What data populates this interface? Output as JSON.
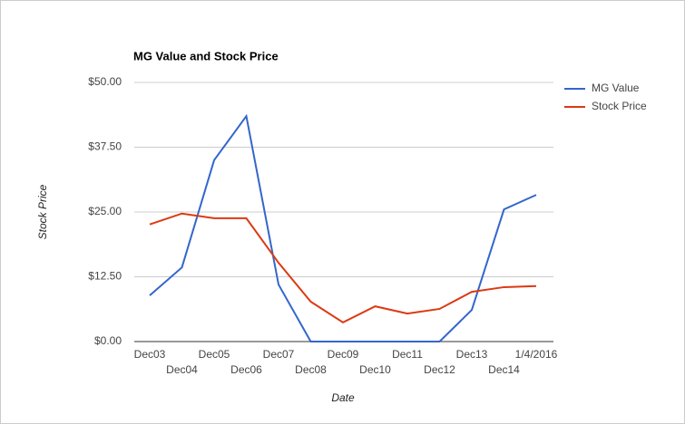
{
  "chart_data": {
    "type": "line",
    "title": "MG Value and Stock Price",
    "x_label": "Date",
    "y_label": "Stock Price",
    "categories": [
      "Dec03",
      "Dec04",
      "Dec05",
      "Dec06",
      "Dec07",
      "Dec08",
      "Dec09",
      "Dec10",
      "Dec11",
      "Dec12",
      "Dec13",
      "Dec14",
      "1/4/2016"
    ],
    "series": [
      {
        "name": "MG Value",
        "color": "#3366cc",
        "values": [
          8.9,
          14.3,
          35.0,
          43.5,
          11.0,
          0,
          0,
          0,
          0,
          0,
          6.1,
          25.5,
          28.3
        ]
      },
      {
        "name": "Stock Price",
        "color": "#dc3912",
        "values": [
          22.6,
          24.7,
          23.8,
          23.8,
          15.2,
          7.7,
          3.7,
          6.8,
          5.4,
          6.3,
          9.6,
          10.5,
          10.7
        ]
      }
    ],
    "ylim": [
      0,
      50
    ],
    "yticks": [
      {
        "value": 0,
        "label": "$0.00"
      },
      {
        "value": 12.5,
        "label": "$12.50"
      },
      {
        "value": 25,
        "label": "$25.00"
      },
      {
        "value": 37.5,
        "label": "$37.50"
      },
      {
        "value": 50,
        "label": "$50.00"
      }
    ],
    "grid": true,
    "legend": "right"
  }
}
